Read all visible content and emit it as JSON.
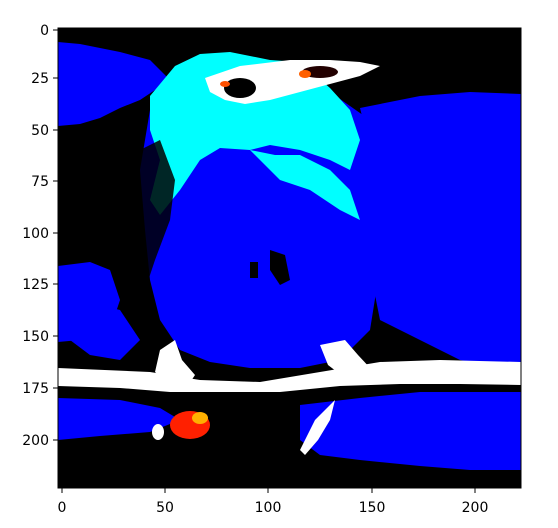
{
  "figure": {
    "image_description_colors": {
      "background_black": "#000000",
      "blue": "#0000ff",
      "cyan": "#00ffff",
      "white": "#ffffff",
      "red": "#ff2000"
    },
    "x_ticks": [
      "0",
      "50",
      "100",
      "150",
      "200"
    ],
    "y_ticks": [
      "0",
      "25",
      "50",
      "75",
      "100",
      "125",
      "150",
      "175",
      "200"
    ],
    "x_range": [
      0,
      224
    ],
    "y_range": [
      0,
      224
    ]
  }
}
